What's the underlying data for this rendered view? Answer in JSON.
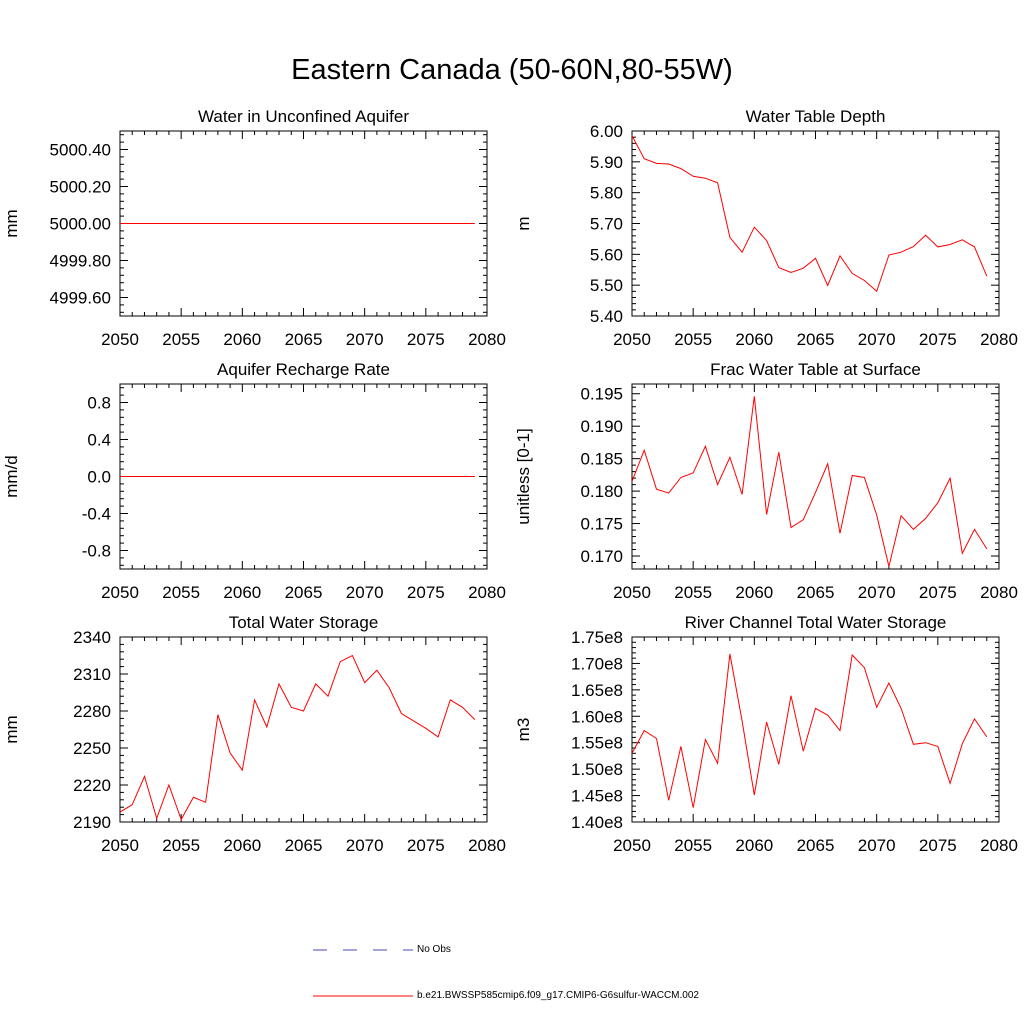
{
  "page": {
    "title": "Eastern Canada (50-60N,80-55W)"
  },
  "series_colors": {
    "model": "#ff0000",
    "obs": "#4a4ab8"
  },
  "legend": {
    "obs_label": "No Obs",
    "model_label": "b.e21.BWSSP585cmip6.f09_g17.CMIP6-G6sulfur-WACCM.002"
  },
  "chart_data": [
    {
      "type": "line",
      "title": "Water in Unconfined Aquifer",
      "ylabel": "mm",
      "xlim": [
        2050,
        2080
      ],
      "ylim": [
        4999.5,
        5000.5
      ],
      "xticks": [
        2050,
        2055,
        2060,
        2065,
        2070,
        2075,
        2080
      ],
      "xtick_labels": [
        "2050",
        "2055",
        "2060",
        "2065",
        "2070",
        "2075",
        "2080"
      ],
      "yticks": [
        4999.6,
        4999.8,
        5000.0,
        5000.2,
        5000.4
      ],
      "ytick_labels": [
        "4999.60",
        "4999.80",
        "5000.00",
        "5000.20",
        "5000.40"
      ],
      "x": [
        2050,
        2051,
        2052,
        2053,
        2054,
        2055,
        2056,
        2057,
        2058,
        2059,
        2060,
        2061,
        2062,
        2063,
        2064,
        2065,
        2066,
        2067,
        2068,
        2069,
        2070,
        2071,
        2072,
        2073,
        2074,
        2075,
        2076,
        2077,
        2078,
        2079
      ],
      "values": [
        5000,
        5000,
        5000,
        5000,
        5000,
        5000,
        5000,
        5000,
        5000,
        5000,
        5000,
        5000,
        5000,
        5000,
        5000,
        5000,
        5000,
        5000,
        5000,
        5000,
        5000,
        5000,
        5000,
        5000,
        5000,
        5000,
        5000,
        5000,
        5000,
        5000
      ]
    },
    {
      "type": "line",
      "title": "Water Table Depth",
      "ylabel": "m",
      "xlim": [
        2050,
        2080
      ],
      "ylim": [
        5.4,
        6.0
      ],
      "xticks": [
        2050,
        2055,
        2060,
        2065,
        2070,
        2075,
        2080
      ],
      "xtick_labels": [
        "2050",
        "2055",
        "2060",
        "2065",
        "2070",
        "2075",
        "2080"
      ],
      "yticks": [
        5.4,
        5.5,
        5.6,
        5.7,
        5.8,
        5.9,
        6.0
      ],
      "ytick_labels": [
        "5.40",
        "5.50",
        "5.60",
        "5.70",
        "5.80",
        "5.90",
        "6.00"
      ],
      "x": [
        2050,
        2051,
        2052,
        2053,
        2054,
        2055,
        2056,
        2057,
        2058,
        2059,
        2060,
        2061,
        2062,
        2063,
        2064,
        2065,
        2066,
        2067,
        2068,
        2069,
        2070,
        2071,
        2072,
        2073,
        2074,
        2075,
        2076,
        2077,
        2078,
        2079
      ],
      "values": [
        5.985,
        5.91,
        5.895,
        5.893,
        5.878,
        5.853,
        5.847,
        5.832,
        5.655,
        5.607,
        5.688,
        5.645,
        5.557,
        5.541,
        5.555,
        5.587,
        5.499,
        5.595,
        5.538,
        5.515,
        5.48,
        5.598,
        5.607,
        5.625,
        5.662,
        5.624,
        5.632,
        5.647,
        5.624,
        5.529
      ]
    },
    {
      "type": "line",
      "title": "Aquifer Recharge Rate",
      "ylabel": "mm/d",
      "xlim": [
        2050,
        2080
      ],
      "ylim": [
        -1.0,
        1.0
      ],
      "xticks": [
        2050,
        2055,
        2060,
        2065,
        2070,
        2075,
        2080
      ],
      "xtick_labels": [
        "2050",
        "2055",
        "2060",
        "2065",
        "2070",
        "2075",
        "2080"
      ],
      "yticks": [
        -0.8,
        -0.4,
        0.0,
        0.4,
        0.8
      ],
      "ytick_labels": [
        "-0.8",
        "-0.4",
        "0.0",
        "0.4",
        "0.8"
      ],
      "x": [
        2050,
        2051,
        2052,
        2053,
        2054,
        2055,
        2056,
        2057,
        2058,
        2059,
        2060,
        2061,
        2062,
        2063,
        2064,
        2065,
        2066,
        2067,
        2068,
        2069,
        2070,
        2071,
        2072,
        2073,
        2074,
        2075,
        2076,
        2077,
        2078,
        2079
      ],
      "values": [
        0,
        0,
        0,
        0,
        0,
        0,
        0,
        0,
        0,
        0,
        0,
        0,
        0,
        0,
        0,
        0,
        0,
        0,
        0,
        0,
        0,
        0,
        0,
        0,
        0,
        0,
        0,
        0,
        0,
        0
      ]
    },
    {
      "type": "line",
      "title": "Frac Water Table at Surface",
      "ylabel": "unitless [0-1]",
      "xlim": [
        2050,
        2080
      ],
      "ylim": [
        0.168,
        0.1965
      ],
      "xticks": [
        2050,
        2055,
        2060,
        2065,
        2070,
        2075,
        2080
      ],
      "xtick_labels": [
        "2050",
        "2055",
        "2060",
        "2065",
        "2070",
        "2075",
        "2080"
      ],
      "yticks": [
        0.17,
        0.175,
        0.18,
        0.185,
        0.19,
        0.195
      ],
      "ytick_labels": [
        "0.170",
        "0.175",
        "0.180",
        "0.185",
        "0.190",
        "0.195"
      ],
      "x": [
        2050,
        2051,
        2052,
        2053,
        2054,
        2055,
        2056,
        2057,
        2058,
        2059,
        2060,
        2061,
        2062,
        2063,
        2064,
        2065,
        2066,
        2067,
        2068,
        2069,
        2070,
        2071,
        2072,
        2073,
        2074,
        2075,
        2076,
        2077,
        2078,
        2079
      ],
      "values": [
        0.1815,
        0.1863,
        0.1803,
        0.1797,
        0.1821,
        0.1828,
        0.1869,
        0.181,
        0.1852,
        0.1795,
        0.1946,
        0.1764,
        0.186,
        0.1744,
        0.1756,
        0.1798,
        0.1842,
        0.1735,
        0.1824,
        0.1821,
        0.1763,
        0.1684,
        0.1762,
        0.1741,
        0.1758,
        0.1782,
        0.182,
        0.1704,
        0.1741,
        0.1711
      ]
    },
    {
      "type": "line",
      "title": "Total Water Storage",
      "ylabel": "mm",
      "xlim": [
        2050,
        2080
      ],
      "ylim": [
        2190,
        2340
      ],
      "xticks": [
        2050,
        2055,
        2060,
        2065,
        2070,
        2075,
        2080
      ],
      "xtick_labels": [
        "2050",
        "2055",
        "2060",
        "2065",
        "2070",
        "2075",
        "2080"
      ],
      "yticks": [
        2190,
        2220,
        2250,
        2280,
        2310,
        2340
      ],
      "ytick_labels": [
        "2190",
        "2220",
        "2250",
        "2280",
        "2310",
        "2340"
      ],
      "x": [
        2050,
        2051,
        2052,
        2053,
        2054,
        2055,
        2056,
        2057,
        2058,
        2059,
        2060,
        2061,
        2062,
        2063,
        2064,
        2065,
        2066,
        2067,
        2068,
        2069,
        2070,
        2071,
        2072,
        2073,
        2074,
        2075,
        2076,
        2077,
        2078,
        2079
      ],
      "values": [
        2198,
        2204,
        2227,
        2193,
        2220,
        2192,
        2210,
        2206,
        2277,
        2246,
        2232,
        2289,
        2267,
        2302,
        2283,
        2280,
        2302,
        2292,
        2320,
        2325,
        2303,
        2313,
        2299,
        2278,
        2272,
        2266,
        2259,
        2289,
        2283,
        2273
      ]
    },
    {
      "type": "line",
      "title": "River Channel Total Water Storage",
      "ylabel": "m3",
      "xlim": [
        2050,
        2080
      ],
      "ylim": [
        140000000,
        175000000
      ],
      "xticks": [
        2050,
        2055,
        2060,
        2065,
        2070,
        2075,
        2080
      ],
      "xtick_labels": [
        "2050",
        "2055",
        "2060",
        "2065",
        "2070",
        "2075",
        "2080"
      ],
      "yticks": [
        140000000,
        145000000,
        150000000,
        155000000,
        160000000,
        165000000,
        170000000,
        175000000
      ],
      "ytick_labels": [
        "1.40e8",
        "1.45e8",
        "1.50e8",
        "1.55e8",
        "1.60e8",
        "1.65e8",
        "1.70e8",
        "1.75e8"
      ],
      "x": [
        2050,
        2051,
        2052,
        2053,
        2054,
        2055,
        2056,
        2057,
        2058,
        2059,
        2060,
        2061,
        2062,
        2063,
        2064,
        2065,
        2066,
        2067,
        2068,
        2069,
        2070,
        2071,
        2072,
        2073,
        2074,
        2075,
        2076,
        2077,
        2078,
        2079
      ],
      "values": [
        153000000,
        157300000,
        155800000,
        144100000,
        154300000,
        142700000,
        155600000,
        151100000,
        171800000,
        159100000,
        145100000,
        158900000,
        150900000,
        163900000,
        153400000,
        161500000,
        160200000,
        157300000,
        171600000,
        169200000,
        161700000,
        166300000,
        161500000,
        154700000,
        155000000,
        154300000,
        147300000,
        154800000,
        159500000,
        156100000
      ]
    }
  ]
}
